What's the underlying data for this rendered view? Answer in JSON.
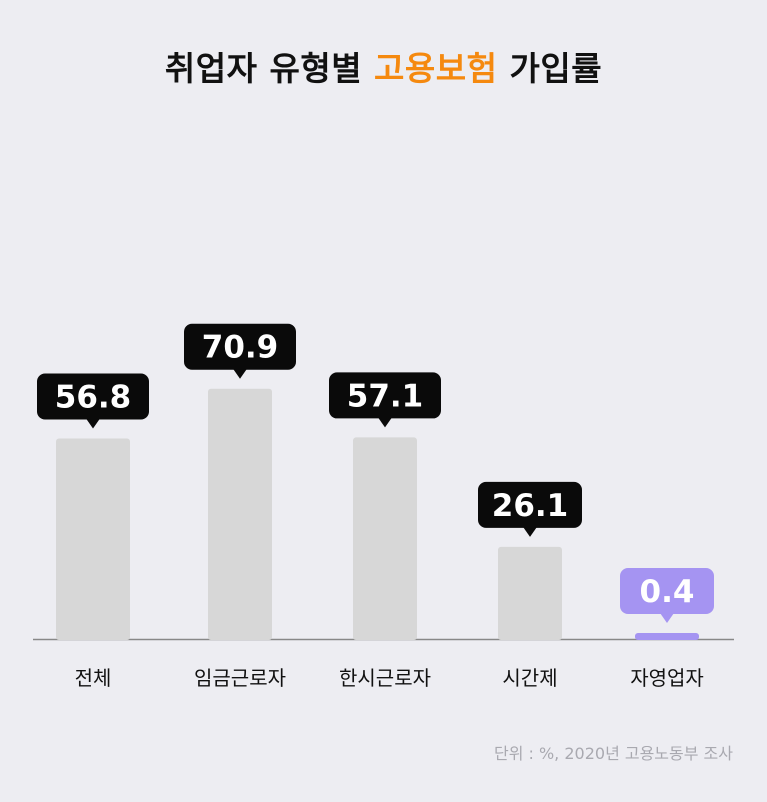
{
  "title": {
    "part1": "취업자 유형별 ",
    "highlight": "고용보험",
    "part2": " 가입률"
  },
  "source_note": "단위 : %, 2020년 고용노동부 조사",
  "colors": {
    "bar": "#d7d7d7",
    "highlight_bar": "#a594f2",
    "label_box": "#0a0a0a",
    "highlight_label_box": "#a594f2",
    "title_highlight": "#f5890f",
    "baseline": "#888888",
    "background": "#ededf2"
  },
  "chart_data": {
    "type": "bar",
    "categories": [
      "전체",
      "임금근로자",
      "한시근로자",
      "시간제",
      "자영업자"
    ],
    "values": [
      56.8,
      70.9,
      57.1,
      26.1,
      0.4
    ],
    "data_labels": [
      "56.8",
      "70.9",
      "57.1",
      "26.1",
      "0.4"
    ],
    "highlight_index": 4,
    "xlabel": "",
    "ylabel": "",
    "ylim": [
      0,
      100
    ],
    "grid": false,
    "legend": "none"
  }
}
